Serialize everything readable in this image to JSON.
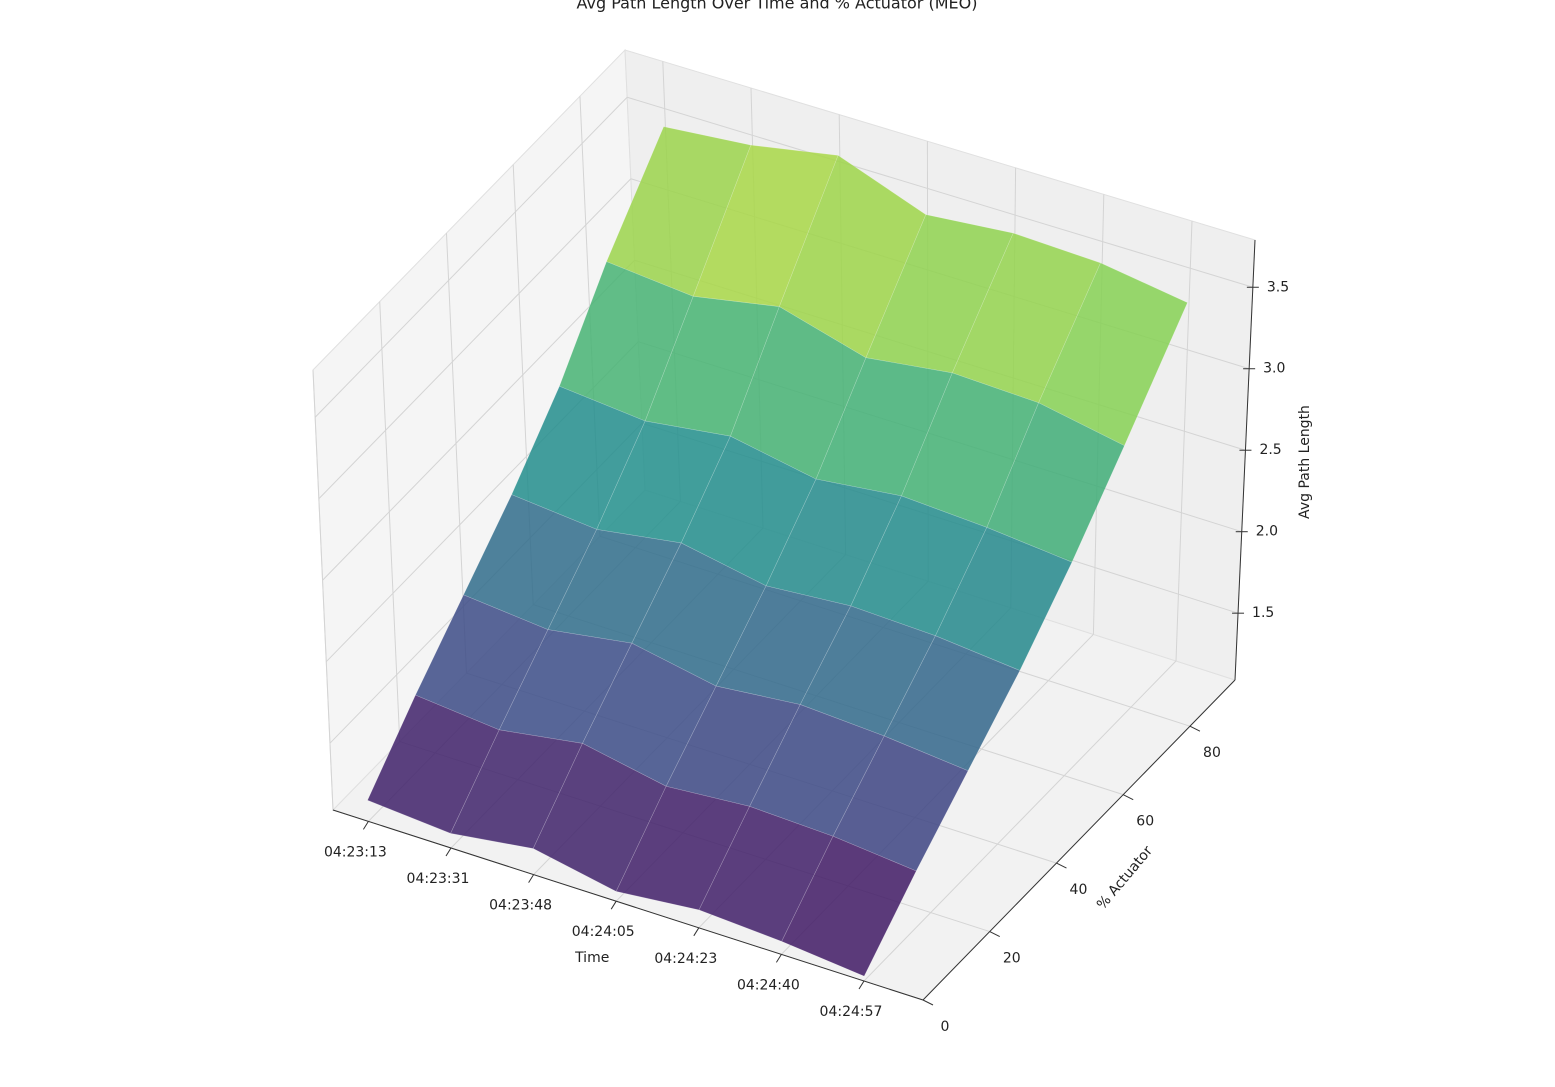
{
  "chart_data": {
    "type": "surface",
    "title": "Avg Path Length Over Time and % Actuator (MEO)",
    "xlabel": "Time",
    "ylabel": "% Actuator",
    "zlabel": "Avg Path Length",
    "x": [
      "04:23:13",
      "04:23:31",
      "04:23:48",
      "04:24:05",
      "04:24:23",
      "04:24:40",
      "04:24:57"
    ],
    "y": [
      0,
      15,
      30,
      45,
      60,
      75,
      93
    ],
    "z": [
      [
        1.22,
        1.18,
        1.25,
        1.15,
        1.2,
        1.17,
        1.12
      ],
      [
        1.55,
        1.5,
        1.58,
        1.48,
        1.52,
        1.5,
        1.45
      ],
      [
        1.85,
        1.8,
        1.88,
        1.78,
        1.83,
        1.8,
        1.75
      ],
      [
        2.15,
        2.1,
        2.18,
        2.08,
        2.12,
        2.1,
        2.05
      ],
      [
        2.5,
        2.45,
        2.52,
        2.42,
        2.48,
        2.45,
        2.4
      ],
      [
        2.95,
        2.9,
        3.0,
        2.85,
        2.92,
        2.9,
        2.8
      ],
      [
        3.4,
        3.45,
        3.55,
        3.35,
        3.4,
        3.38,
        3.3
      ]
    ],
    "ylim": [
      0,
      93.5
    ],
    "yticks": [
      0,
      20,
      40,
      60,
      80
    ],
    "zlim": [
      1.09,
      3.79
    ],
    "zticks": [
      1.5,
      {
        "value": 2,
        "label": "2.0"
      },
      2.5,
      {
        "value": 3,
        "label": "3.0"
      },
      3.5
    ],
    "colormap": "viridis",
    "grid": true
  }
}
